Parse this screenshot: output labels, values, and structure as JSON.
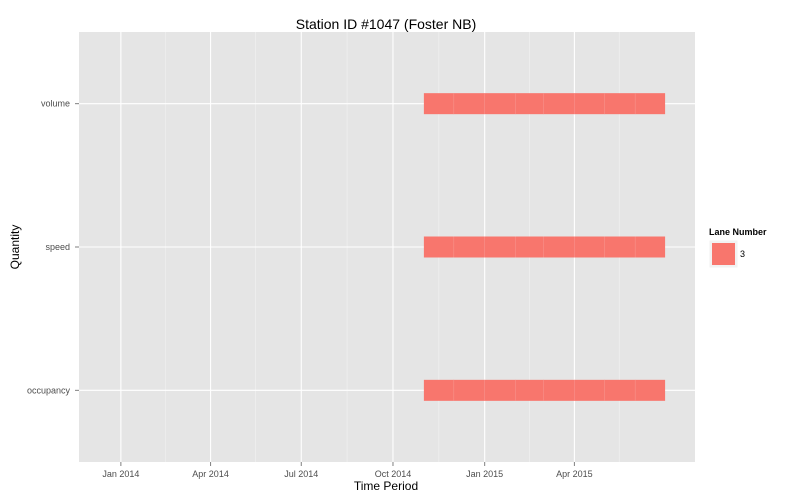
{
  "chart_data": {
    "type": "bar",
    "subtype": "horizontal-range",
    "title": "Station ID #1047 (Foster NB)",
    "xlabel": "Time Period",
    "ylabel": "Quantity",
    "categories": [
      "occupancy",
      "speed",
      "volume"
    ],
    "x_ticks": [
      {
        "date": "2014-01-01",
        "label": "Jan 2014"
      },
      {
        "date": "2014-04-01",
        "label": "Apr 2014"
      },
      {
        "date": "2014-07-01",
        "label": "Jul 2014"
      },
      {
        "date": "2014-10-01",
        "label": "Oct 2014"
      },
      {
        "date": "2015-01-01",
        "label": "Jan 2015"
      },
      {
        "date": "2015-04-01",
        "label": "Apr 2015"
      }
    ],
    "xlim": [
      "2013-11-20",
      "2015-07-31"
    ],
    "series": [
      {
        "name": "3",
        "color": "#F8766D",
        "segments": [
          {
            "category": "volume",
            "start": "2014-11-01",
            "end": "2015-07-01"
          },
          {
            "category": "speed",
            "start": "2014-11-01",
            "end": "2015-07-01"
          },
          {
            "category": "occupancy",
            "start": "2014-11-01",
            "end": "2015-07-01"
          }
        ]
      }
    ],
    "legend": {
      "title": "Lane Number",
      "position": "right"
    },
    "grid": true,
    "panel_color": "#E5E5E5",
    "grid_color": "#FFFFFF"
  }
}
